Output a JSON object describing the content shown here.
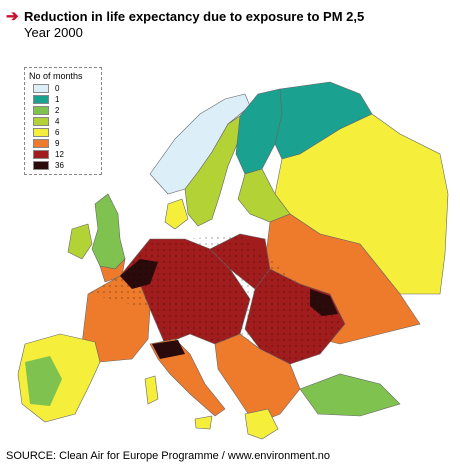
{
  "header": {
    "title": "Reduction in life expectancy due to exposure to PM 2,5",
    "subtitle": "Year 2000",
    "arrow_color": "#c8102e"
  },
  "legend": {
    "title": "No of months",
    "items": [
      {
        "label": "0",
        "color": "#dceef8"
      },
      {
        "label": "1",
        "color": "#1aa18f"
      },
      {
        "label": "2",
        "color": "#7fc24f"
      },
      {
        "label": "4",
        "color": "#b2d235"
      },
      {
        "label": "6",
        "color": "#f5ee3a"
      },
      {
        "label": "9",
        "color": "#ee7a2b"
      },
      {
        "label": "12",
        "color": "#a11d1d"
      },
      {
        "label": "36",
        "color": "#2a0a0a"
      }
    ]
  },
  "map": {
    "sea_color": "#ffffff",
    "border_color": "#666666"
  },
  "footer": {
    "source": "SOURCE: Clean Air for Europe Programme / www.environment.no"
  }
}
